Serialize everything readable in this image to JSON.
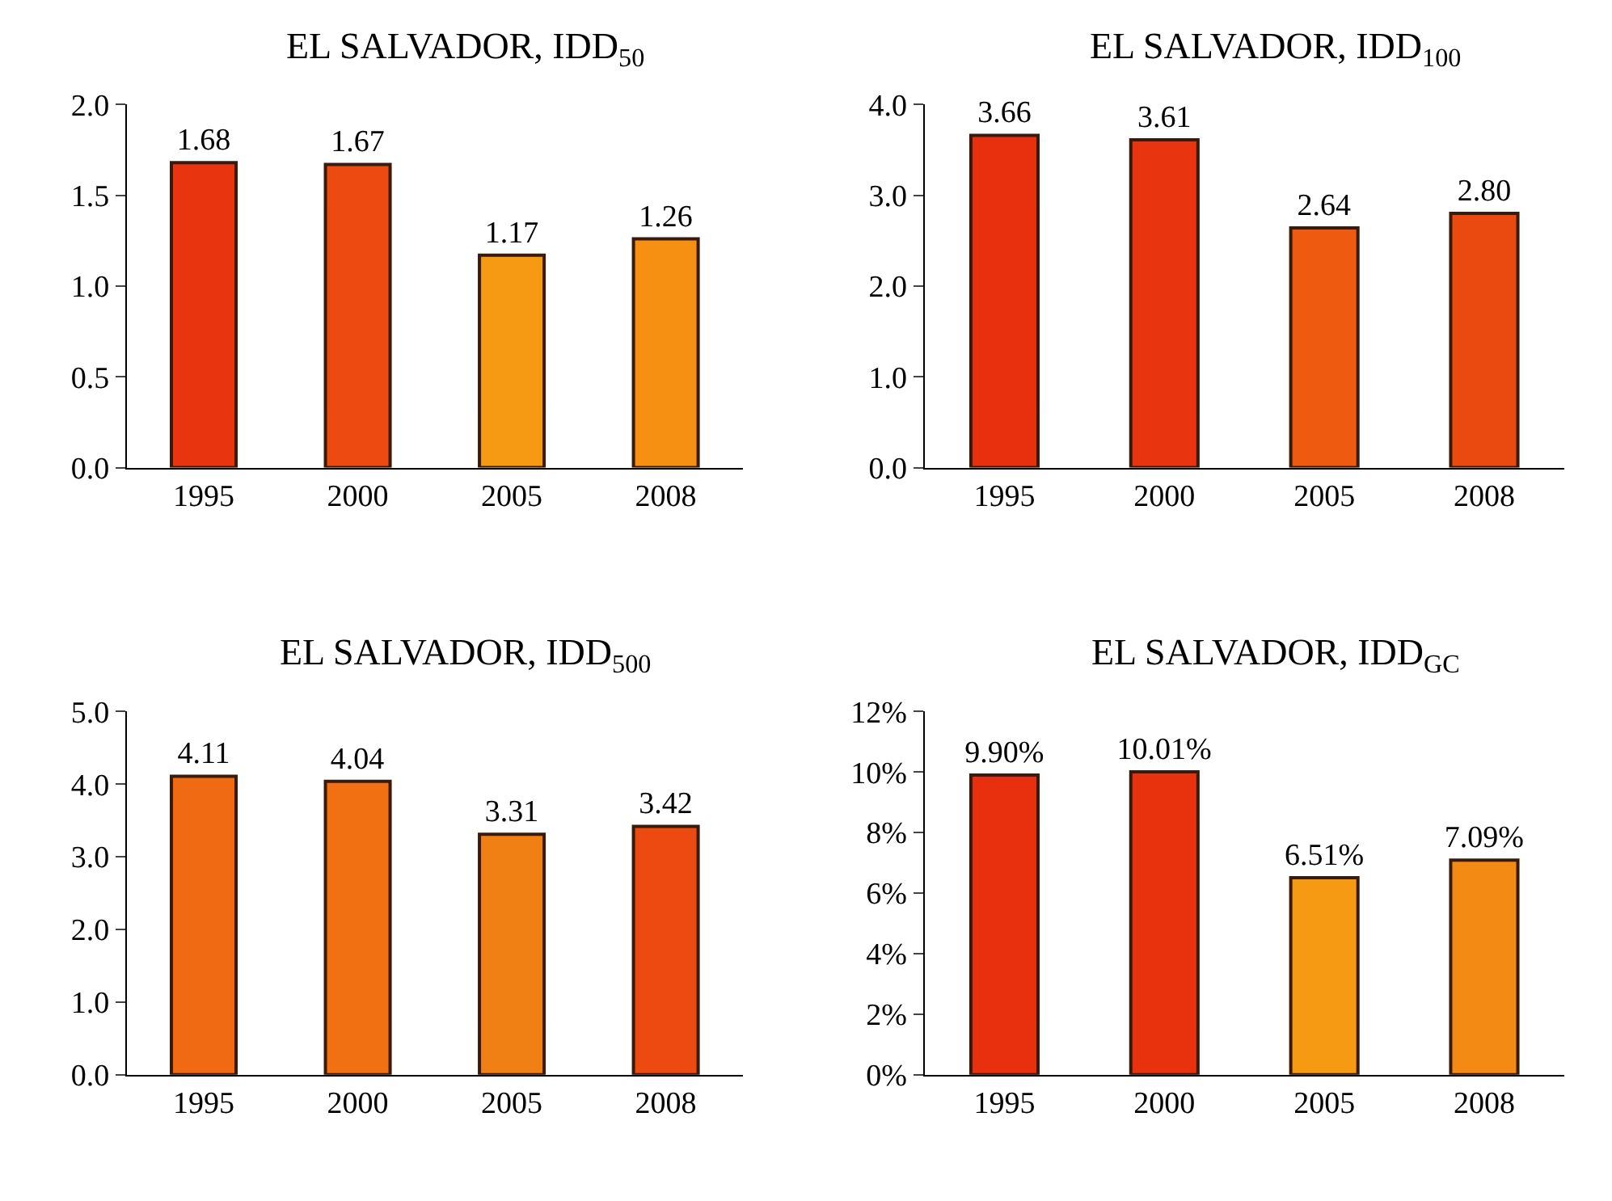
{
  "chart_data": [
    {
      "type": "bar",
      "title": "EL SALVADOR, IDD$_{50}$",
      "categories": [
        "1995",
        "2000",
        "2005",
        "2008"
      ],
      "values": [
        1.68,
        1.67,
        1.17,
        1.26
      ],
      "colors": [
        "#e8340f",
        "#ec4a10",
        "#f59a12",
        "#f59012"
      ],
      "ylim": [
        0,
        2
      ],
      "yticks": [
        {
          "value": 0,
          "label": "0.0"
        },
        {
          "value": 0.5,
          "label": "0.5"
        },
        {
          "value": 1,
          "label": "1.0"
        },
        {
          "value": 1.5,
          "label": "1.5"
        },
        {
          "value": 2,
          "label": "2.0"
        }
      ],
      "data_labels": true
    },
    {
      "type": "bar",
      "title": "EL SALVADOR, IDD$_{100}$",
      "categories": [
        "1995",
        "2000",
        "2005",
        "2008"
      ],
      "values": [
        3.66,
        3.61,
        2.64,
        2.8
      ],
      "value_labels": [
        "3.66",
        "3.61",
        "2.64",
        "2.80"
      ],
      "colors": [
        "#e8300e",
        "#e8350f",
        "#ee5a10",
        "#ea4a10"
      ],
      "ylim": [
        0,
        4
      ],
      "yticks": [
        {
          "value": 0,
          "label": "0.0"
        },
        {
          "value": 1,
          "label": "1.0"
        },
        {
          "value": 2,
          "label": "2.0"
        },
        {
          "value": 3,
          "label": "3.0"
        },
        {
          "value": 4,
          "label": "4.0"
        }
      ]
    },
    {
      "type": "bar",
      "title": "EL SALVADOR, IDD$_{500}$",
      "categories": [
        "1995",
        "2000",
        "2005",
        "2008"
      ],
      "values": [
        4.11,
        4.04,
        3.31,
        3.42
      ],
      "colors": [
        "#ef6a12",
        "#f07012",
        "#f08014",
        "#ec4a10"
      ],
      "ylim": [
        0,
        5
      ],
      "yticks": [
        {
          "value": 0,
          "label": "0.0"
        },
        {
          "value": 1,
          "label": "1.0"
        },
        {
          "value": 2,
          "label": "2.0"
        },
        {
          "value": 3,
          "label": "3.0"
        },
        {
          "value": 4,
          "label": "4.0"
        },
        {
          "value": 5,
          "label": "5.0"
        }
      ],
      "data_labels": true
    },
    {
      "type": "bar",
      "title": "EL SALVADOR, IDD$_{GC}$",
      "categories": [
        "1995",
        "2000",
        "2005",
        "2008"
      ],
      "values": [
        9.9,
        10.01,
        6.51,
        7.09
      ],
      "value_labels": [
        "9.90%",
        "10.01%",
        "6.51%",
        "7.09%"
      ],
      "colors": [
        "#e8300e",
        "#e8320e",
        "#f59a12",
        "#f28a14"
      ],
      "ylim": [
        0,
        12
      ],
      "yticks": [
        {
          "value": 0,
          "label": "0%"
        },
        {
          "value": 2,
          "label": "2%"
        },
        {
          "value": 4,
          "label": "4%"
        },
        {
          "value": 6,
          "label": "6%"
        },
        {
          "value": 8,
          "label": "8%"
        },
        {
          "value": 10,
          "label": "10%"
        },
        {
          "value": 12,
          "label": "12%"
        }
      ]
    }
  ]
}
